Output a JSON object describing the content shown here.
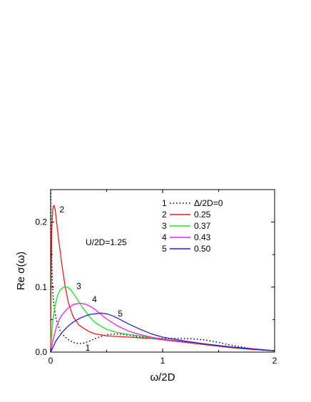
{
  "chart_data": {
    "type": "line",
    "xlabel": "ω/2D",
    "ylabel": "Re σ(ω)",
    "xlim": [
      0,
      2
    ],
    "ylim": [
      0,
      0.25
    ],
    "x_ticks": [
      0,
      1,
      2
    ],
    "x_tick_labels": [
      "0",
      "1",
      "2"
    ],
    "y_ticks": [
      0.0,
      0.1,
      0.2
    ],
    "y_tick_labels": [
      "0.0",
      "0.1",
      "0.2"
    ],
    "grid": false,
    "legend_position": "top-right",
    "annotation": "U/2D=1.25",
    "legend_header": "Δ/2D=0",
    "series": [
      {
        "name": "Δ/2D=0",
        "legend_index": "1",
        "legend_label": "Δ/2D=0",
        "curve_label": "1",
        "color": "#000000",
        "dashed": true,
        "x": [
          0.0,
          0.003,
          0.006,
          0.01,
          0.015,
          0.02,
          0.03,
          0.05,
          0.08,
          0.1,
          0.15,
          0.2,
          0.25,
          0.3,
          0.35,
          0.4,
          0.5,
          0.6,
          0.7,
          0.8,
          0.9,
          1.0,
          1.1,
          1.2,
          1.3,
          1.4,
          1.5,
          1.6,
          1.7,
          1.8,
          1.9,
          2.0
        ],
        "y": [
          0.25,
          0.22,
          0.18,
          0.14,
          0.11,
          0.09,
          0.07,
          0.05,
          0.035,
          0.028,
          0.02,
          0.015,
          0.013,
          0.014,
          0.017,
          0.021,
          0.027,
          0.028,
          0.026,
          0.023,
          0.022,
          0.021,
          0.021,
          0.021,
          0.02,
          0.018,
          0.015,
          0.011,
          0.008,
          0.005,
          0.003,
          0.002
        ]
      },
      {
        "name": "0.25",
        "legend_index": "2",
        "legend_label": "0.25",
        "curve_label": "2",
        "color": "#e02020",
        "dashed": false,
        "x": [
          0.0,
          0.005,
          0.01,
          0.02,
          0.03,
          0.04,
          0.05,
          0.07,
          0.1,
          0.13,
          0.16,
          0.2,
          0.25,
          0.3,
          0.35,
          0.4,
          0.5,
          0.6,
          0.7,
          0.8,
          0.9,
          1.0,
          1.2,
          1.4,
          1.6,
          1.8,
          2.0
        ],
        "y": [
          0.0,
          0.12,
          0.19,
          0.222,
          0.226,
          0.22,
          0.205,
          0.175,
          0.135,
          0.1,
          0.075,
          0.055,
          0.042,
          0.036,
          0.031,
          0.028,
          0.025,
          0.024,
          0.023,
          0.022,
          0.021,
          0.019,
          0.015,
          0.011,
          0.007,
          0.004,
          0.002
        ]
      },
      {
        "name": "0.37",
        "legend_index": "3",
        "legend_label": "0.37",
        "curve_label": "3",
        "color": "#22dd22",
        "dashed": false,
        "x": [
          0.0,
          0.01,
          0.02,
          0.04,
          0.06,
          0.08,
          0.1,
          0.12,
          0.15,
          0.18,
          0.2,
          0.25,
          0.3,
          0.35,
          0.4,
          0.5,
          0.6,
          0.7,
          0.8,
          0.9,
          1.0,
          1.2,
          1.4,
          1.6,
          1.8,
          2.0
        ],
        "y": [
          0.0,
          0.03,
          0.05,
          0.072,
          0.086,
          0.094,
          0.098,
          0.1,
          0.1,
          0.096,
          0.091,
          0.078,
          0.065,
          0.054,
          0.045,
          0.035,
          0.03,
          0.027,
          0.025,
          0.022,
          0.02,
          0.016,
          0.012,
          0.008,
          0.005,
          0.002
        ]
      },
      {
        "name": "0.43",
        "legend_index": "4",
        "legend_label": "0.43",
        "curve_label": "4",
        "color": "#ee22ee",
        "dashed": false,
        "x": [
          0.0,
          0.02,
          0.05,
          0.08,
          0.1,
          0.15,
          0.2,
          0.25,
          0.28,
          0.32,
          0.36,
          0.4,
          0.45,
          0.5,
          0.6,
          0.7,
          0.8,
          0.9,
          1.0,
          1.2,
          1.4,
          1.6,
          1.8,
          2.0
        ],
        "y": [
          0.0,
          0.018,
          0.038,
          0.051,
          0.057,
          0.067,
          0.073,
          0.075,
          0.075,
          0.073,
          0.07,
          0.065,
          0.058,
          0.051,
          0.04,
          0.032,
          0.027,
          0.023,
          0.02,
          0.016,
          0.012,
          0.008,
          0.005,
          0.002
        ]
      },
      {
        "name": "0.50",
        "legend_index": "5",
        "legend_label": "0.50",
        "curve_label": "5",
        "color": "#2222cc",
        "dashed": false,
        "x": [
          0.0,
          0.05,
          0.1,
          0.15,
          0.2,
          0.25,
          0.3,
          0.35,
          0.4,
          0.45,
          0.5,
          0.55,
          0.6,
          0.7,
          0.8,
          0.9,
          1.0,
          1.2,
          1.4,
          1.6,
          1.8,
          2.0
        ],
        "y": [
          0.0,
          0.018,
          0.03,
          0.039,
          0.046,
          0.051,
          0.055,
          0.058,
          0.059,
          0.06,
          0.059,
          0.056,
          0.052,
          0.043,
          0.035,
          0.028,
          0.023,
          0.017,
          0.012,
          0.008,
          0.005,
          0.002
        ]
      }
    ]
  }
}
